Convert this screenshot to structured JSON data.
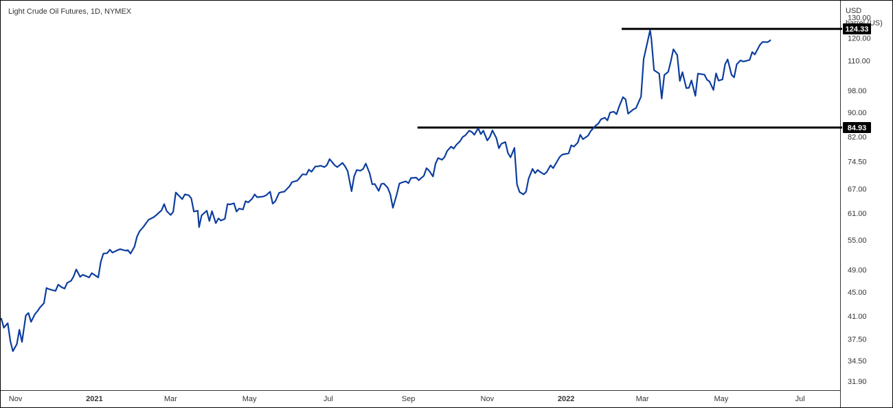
{
  "header": {
    "title": "Light Crude Oil Futures, 1D, NYMEX"
  },
  "axis": {
    "unit_line1": "USD",
    "unit_line2": "barrel (US)"
  },
  "colors": {
    "line": "#0b3d9e",
    "levels": "#000000",
    "axis": "#333333"
  },
  "chart_data": {
    "type": "line",
    "title": "Light Crude Oil Futures, 1D, NYMEX",
    "xlabel": "",
    "ylabel": "USD / barrel (US)",
    "yscale": "log",
    "ylim": [
      30.8,
      139
    ],
    "xlim": [
      "2020-10-20",
      "2022-08-01"
    ],
    "grid": false,
    "y_ticks": [
      "130.00",
      "120.00",
      "110.00",
      "98.00",
      "90.00",
      "82.00",
      "74.50",
      "67.00",
      "61.00",
      "55.00",
      "49.00",
      "45.00",
      "41.00",
      "37.50",
      "34.50",
      "31.90"
    ],
    "x_ticks": [
      {
        "label": "Nov",
        "date": "2020-11-01",
        "year": false
      },
      {
        "label": "2021",
        "date": "2021-01-01",
        "year": true
      },
      {
        "label": "Mar",
        "date": "2021-03-01",
        "year": false
      },
      {
        "label": "May",
        "date": "2021-05-01",
        "year": false
      },
      {
        "label": "Jul",
        "date": "2021-07-01",
        "year": false
      },
      {
        "label": "Sep",
        "date": "2021-09-01",
        "year": false
      },
      {
        "label": "Nov",
        "date": "2021-11-01",
        "year": false
      },
      {
        "label": "2022",
        "date": "2022-01-01",
        "year": true
      },
      {
        "label": "Mar",
        "date": "2022-03-01",
        "year": false
      },
      {
        "label": "May",
        "date": "2022-05-01",
        "year": false
      },
      {
        "label": "Jul",
        "date": "2022-07-01",
        "year": false
      }
    ],
    "levels": [
      {
        "value": 124.33,
        "label": "124.33",
        "from": "2022-02-13"
      },
      {
        "value": 84.93,
        "label": "84.93",
        "from": "2021-09-08"
      }
    ],
    "series": [
      {
        "x": [
          "2020-10-21",
          "2020-10-23",
          "2020-10-26",
          "2020-10-28",
          "2020-10-30",
          "2020-11-02",
          "2020-11-04",
          "2020-11-06",
          "2020-11-09",
          "2020-11-11",
          "2020-11-13",
          "2020-11-16",
          "2020-11-18",
          "2020-11-20",
          "2020-11-23",
          "2020-11-25",
          "2020-11-27",
          "2020-11-30",
          "2020-12-02",
          "2020-12-04",
          "2020-12-07",
          "2020-12-09",
          "2020-12-11",
          "2020-12-14",
          "2020-12-16",
          "2020-12-18",
          "2020-12-21",
          "2020-12-23",
          "2020-12-28",
          "2020-12-30",
          "2021-01-04",
          "2021-01-06",
          "2021-01-08",
          "2021-01-11",
          "2021-01-13",
          "2021-01-15",
          "2021-01-19",
          "2021-01-21",
          "2021-01-25",
          "2021-01-27",
          "2021-01-29",
          "2021-02-01",
          "2021-02-03",
          "2021-02-05",
          "2021-02-08",
          "2021-02-10",
          "2021-02-12",
          "2021-02-16",
          "2021-02-18",
          "2021-02-22",
          "2021-02-24",
          "2021-02-26",
          "2021-03-01",
          "2021-03-03",
          "2021-03-05",
          "2021-03-08",
          "2021-03-10",
          "2021-03-12",
          "2021-03-15",
          "2021-03-17",
          "2021-03-19",
          "2021-03-22",
          "2021-03-23",
          "2021-03-25",
          "2021-03-29",
          "2021-03-31",
          "2021-04-02",
          "2021-04-05",
          "2021-04-07",
          "2021-04-09",
          "2021-04-12",
          "2021-04-14",
          "2021-04-16",
          "2021-04-19",
          "2021-04-21",
          "2021-04-23",
          "2021-04-26",
          "2021-04-28",
          "2021-04-30",
          "2021-05-03",
          "2021-05-05",
          "2021-05-07",
          "2021-05-10",
          "2021-05-12",
          "2021-05-14",
          "2021-05-17",
          "2021-05-19",
          "2021-05-21",
          "2021-05-24",
          "2021-05-26",
          "2021-05-28",
          "2021-06-01",
          "2021-06-03",
          "2021-06-07",
          "2021-06-09",
          "2021-06-11",
          "2021-06-14",
          "2021-06-16",
          "2021-06-18",
          "2021-06-21",
          "2021-06-23",
          "2021-06-25",
          "2021-06-28",
          "2021-06-30",
          "2021-07-02",
          "2021-07-06",
          "2021-07-08",
          "2021-07-12",
          "2021-07-14",
          "2021-07-16",
          "2021-07-19",
          "2021-07-21",
          "2021-07-23",
          "2021-07-26",
          "2021-07-28",
          "2021-07-30",
          "2021-08-02",
          "2021-08-04",
          "2021-08-06",
          "2021-08-09",
          "2021-08-11",
          "2021-08-13",
          "2021-08-16",
          "2021-08-18",
          "2021-08-20",
          "2021-08-23",
          "2021-08-25",
          "2021-08-27",
          "2021-08-30",
          "2021-09-01",
          "2021-09-03",
          "2021-09-07",
          "2021-09-09",
          "2021-09-13",
          "2021-09-15",
          "2021-09-17",
          "2021-09-20",
          "2021-09-22",
          "2021-09-24",
          "2021-09-27",
          "2021-09-29",
          "2021-10-01",
          "2021-10-04",
          "2021-10-06",
          "2021-10-08",
          "2021-10-11",
          "2021-10-13",
          "2021-10-15",
          "2021-10-18",
          "2021-10-20",
          "2021-10-22",
          "2021-10-25",
          "2021-10-27",
          "2021-10-29",
          "2021-11-01",
          "2021-11-03",
          "2021-11-05",
          "2021-11-08",
          "2021-11-10",
          "2021-11-12",
          "2021-11-15",
          "2021-11-17",
          "2021-11-19",
          "2021-11-22",
          "2021-11-24",
          "2021-11-26",
          "2021-11-29",
          "2021-12-01",
          "2021-12-03",
          "2021-12-06",
          "2021-12-08",
          "2021-12-10",
          "2021-12-13",
          "2021-12-15",
          "2021-12-17",
          "2021-12-20",
          "2021-12-22",
          "2021-12-27",
          "2021-12-29",
          "2022-01-03",
          "2022-01-05",
          "2022-01-07",
          "2022-01-10",
          "2022-01-12",
          "2022-01-14",
          "2022-01-18",
          "2022-01-20",
          "2022-01-24",
          "2022-01-26",
          "2022-01-28",
          "2022-01-31",
          "2022-02-02",
          "2022-02-04",
          "2022-02-07",
          "2022-02-09",
          "2022-02-11",
          "2022-02-14",
          "2022-02-16",
          "2022-02-18",
          "2022-02-22",
          "2022-02-24",
          "2022-02-28",
          "2022-03-02",
          "2022-03-04",
          "2022-03-07",
          "2022-03-08",
          "2022-03-10",
          "2022-03-14",
          "2022-03-16",
          "2022-03-18",
          "2022-03-21",
          "2022-03-23",
          "2022-03-25",
          "2022-03-28",
          "2022-03-30",
          "2022-04-01",
          "2022-04-04",
          "2022-04-06",
          "2022-04-08",
          "2022-04-11",
          "2022-04-13",
          "2022-04-18",
          "2022-04-20",
          "2022-04-22",
          "2022-04-25",
          "2022-04-27",
          "2022-04-29",
          "2022-05-02",
          "2022-05-04",
          "2022-05-06",
          "2022-05-09",
          "2022-05-11",
          "2022-05-13",
          "2022-05-16",
          "2022-05-18",
          "2022-05-20",
          "2022-05-23",
          "2022-05-25",
          "2022-05-27",
          "2022-05-31",
          "2022-06-02",
          "2022-06-06",
          "2022-06-08"
        ],
        "values": [
          40.6,
          39.2,
          39.9,
          37.2,
          35.8,
          36.8,
          38.9,
          37.1,
          41.1,
          41.5,
          40.1,
          41.3,
          41.8,
          42.4,
          43.1,
          45.7,
          45.5,
          45.3,
          45.2,
          46.3,
          45.8,
          45.6,
          46.6,
          47.0,
          47.8,
          49.1,
          47.7,
          48.1,
          47.6,
          48.4,
          47.6,
          50.6,
          52.2,
          52.3,
          53.0,
          52.4,
          52.9,
          53.1,
          52.8,
          52.9,
          52.2,
          53.6,
          55.7,
          56.9,
          57.9,
          58.7,
          59.5,
          60.1,
          60.6,
          61.7,
          63.2,
          61.5,
          60.6,
          61.3,
          66.1,
          65.1,
          64.4,
          65.6,
          65.4,
          64.6,
          61.4,
          61.6,
          57.8,
          60.5,
          61.6,
          59.2,
          61.5,
          58.7,
          59.8,
          59.3,
          59.7,
          63.2,
          63.1,
          63.4,
          61.4,
          62.1,
          61.9,
          63.9,
          63.6,
          64.5,
          65.6,
          64.9,
          65.0,
          65.1,
          65.4,
          66.3,
          63.3,
          63.9,
          66.0,
          66.2,
          66.3,
          67.7,
          68.8,
          69.2,
          70.0,
          70.9,
          70.8,
          72.2,
          71.6,
          73.1,
          73.1,
          73.3,
          72.9,
          73.5,
          75.2,
          73.4,
          72.9,
          74.1,
          73.1,
          71.8,
          66.4,
          70.3,
          72.1,
          71.9,
          72.4,
          73.9,
          71.2,
          68.2,
          68.3,
          66.5,
          68.3,
          68.4,
          67.3,
          65.6,
          62.3,
          65.6,
          68.4,
          68.7,
          69.0,
          68.5,
          69.9,
          70.0,
          69.3,
          70.5,
          72.6,
          71.9,
          70.3,
          73.9,
          75.5,
          75.0,
          75.8,
          77.6,
          78.9,
          78.3,
          79.4,
          80.6,
          81.9,
          82.4,
          83.9,
          83.5,
          82.6,
          84.7,
          82.8,
          83.9,
          80.8,
          81.9,
          84.0,
          81.6,
          78.4,
          79.8,
          80.3,
          77.0,
          75.7,
          78.5,
          68.2,
          66.2,
          65.6,
          66.3,
          69.7,
          72.4,
          71.2,
          72.1,
          71.3,
          70.9,
          71.5,
          73.4,
          72.6,
          75.8,
          76.5,
          76.9,
          79.3,
          78.9,
          80.1,
          82.6,
          81.2,
          82.3,
          83.8,
          85.6,
          86.3,
          87.7,
          88.2,
          87.3,
          90.0,
          90.3,
          89.4,
          92.1,
          95.5,
          94.7,
          89.6,
          91.1,
          91.5,
          95.7,
          110.6,
          115.7,
          123.7,
          119.4,
          106.0,
          104.6,
          95.0,
          104.1,
          105.3,
          109.6,
          114.9,
          112.4,
          101.7,
          105.2,
          98.9,
          99.0,
          101.9,
          96.0,
          104.6,
          104.2,
          102.2,
          101.4,
          98.2,
          104.7,
          101.8,
          102.3,
          108.4,
          110.5,
          104.1,
          103.1,
          108.4,
          110.1,
          109.6,
          109.8,
          110.3,
          113.7,
          112.6,
          116.9,
          118.2,
          118.1,
          119.0
        ]
      }
    ]
  }
}
